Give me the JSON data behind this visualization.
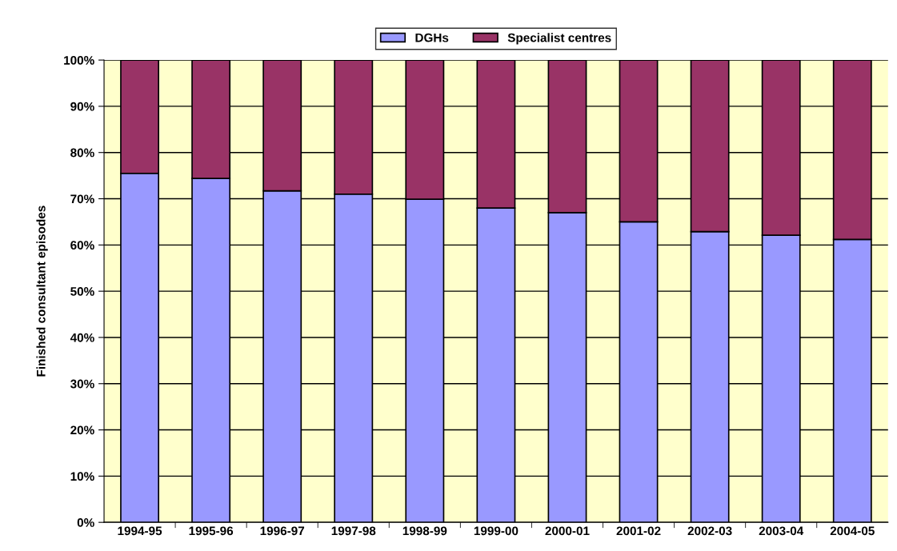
{
  "chart_data": {
    "type": "bar",
    "stacked": true,
    "ylabel": "Finished consultant episodes",
    "categories": [
      "1994-95",
      "1995-96",
      "1996-97",
      "1997-98",
      "1998-99",
      "1999-00",
      "2000-01",
      "2001-02",
      "2002-03",
      "2003-04",
      "2004-05"
    ],
    "series": [
      {
        "name": "DGHs",
        "color": "#9999ff",
        "values": [
          75.5,
          74.4,
          71.7,
          71.0,
          69.9,
          68.0,
          67.0,
          65.0,
          62.9,
          62.1,
          61.2
        ]
      },
      {
        "name": "Specialist centres",
        "color": "#993366",
        "values": [
          24.5,
          25.6,
          28.3,
          29.0,
          30.1,
          32.0,
          33.0,
          35.0,
          37.1,
          37.9,
          38.8
        ]
      }
    ],
    "ylim": [
      0,
      100
    ],
    "yticks": [
      {
        "value": 0,
        "label": "0%"
      },
      {
        "value": 10,
        "label": "10%"
      },
      {
        "value": 20,
        "label": "20%"
      },
      {
        "value": 30,
        "label": "30%"
      },
      {
        "value": 40,
        "label": "40%"
      },
      {
        "value": 50,
        "label": "50%"
      },
      {
        "value": 60,
        "label": "60%"
      },
      {
        "value": 70,
        "label": "70%"
      },
      {
        "value": 80,
        "label": "80%"
      },
      {
        "value": 90,
        "label": "90%"
      },
      {
        "value": 100,
        "label": "100%"
      }
    ],
    "grid": "y",
    "legend": "top"
  }
}
